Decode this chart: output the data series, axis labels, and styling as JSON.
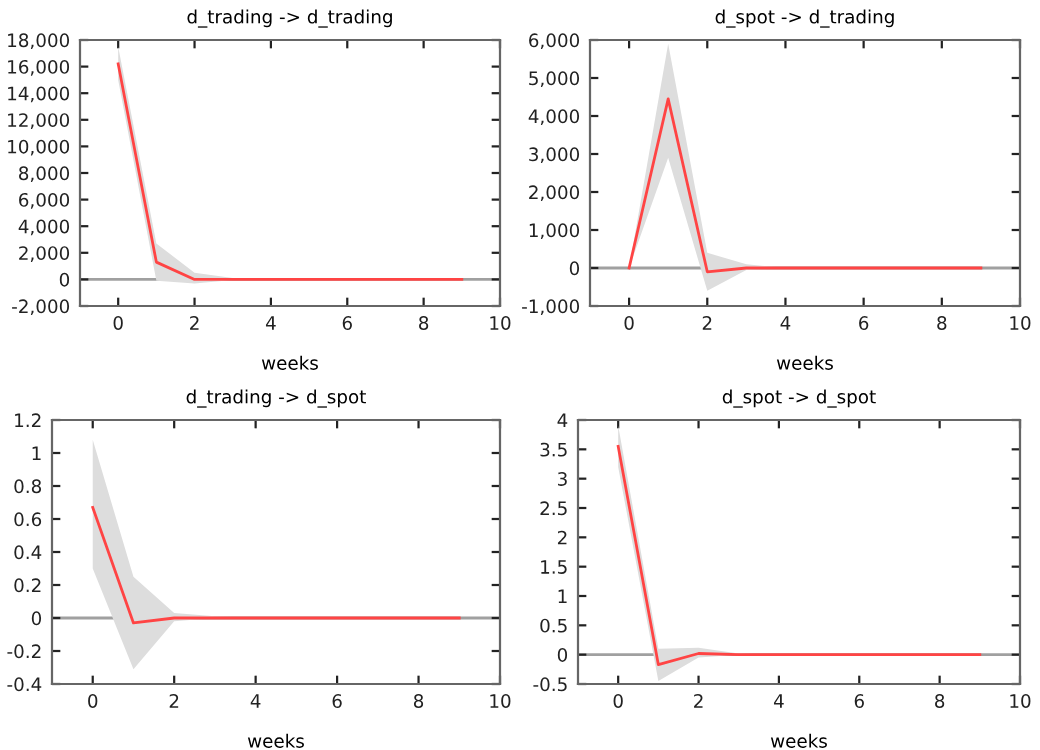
{
  "chart_data": [
    {
      "type": "line",
      "title": "d_trading -> d_trading",
      "xlabel": "weeks",
      "x": [
        0,
        1,
        2,
        3,
        4,
        5,
        6,
        7,
        8,
        9
      ],
      "series": [
        {
          "color": "#ff4444",
          "values": [
            16200,
            1300,
            0,
            0,
            0,
            0,
            0,
            0,
            0,
            0
          ],
          "lower": [
            15000,
            -100,
            -300,
            -50,
            0,
            0,
            0,
            0,
            0,
            0
          ],
          "upper": [
            17500,
            2700,
            500,
            100,
            0,
            0,
            0,
            0,
            0,
            0
          ]
        }
      ],
      "xlim": [
        -1,
        10
      ],
      "xticks": [
        0,
        2,
        4,
        6,
        8,
        10
      ],
      "ylim": [
        -2000,
        18000
      ],
      "yticks": [
        {
          "value": -2000,
          "label": "-2,000"
        },
        0,
        {
          "value": 2000,
          "label": "2,000"
        },
        {
          "value": 4000,
          "label": "4,000"
        },
        {
          "value": 6000,
          "label": "6,000"
        },
        {
          "value": 8000,
          "label": "8,000"
        },
        {
          "value": 10000,
          "label": "10,000"
        },
        {
          "value": 12000,
          "label": "12,000"
        },
        {
          "value": 14000,
          "label": "14,000"
        },
        {
          "value": 16000,
          "label": "16,000"
        },
        {
          "value": 18000,
          "label": "18,000"
        }
      ],
      "ref_lines": [
        {
          "axis": "y",
          "value": 0,
          "color": "#a0a0a0"
        }
      ],
      "marker": "none",
      "line_style": "solid"
    },
    {
      "type": "line",
      "title": "d_spot -> d_trading",
      "xlabel": "weeks",
      "x": [
        0,
        1,
        2,
        3,
        4,
        5,
        6,
        7,
        8,
        9
      ],
      "series": [
        {
          "color": "#ff4444",
          "values": [
            0,
            4450,
            -100,
            0,
            0,
            0,
            0,
            0,
            0,
            0
          ],
          "lower": [
            0,
            2900,
            -600,
            -50,
            0,
            0,
            0,
            0,
            0,
            0
          ],
          "upper": [
            0,
            5900,
            400,
            100,
            0,
            0,
            0,
            0,
            0,
            0
          ]
        }
      ],
      "xlim": [
        -1,
        10
      ],
      "xticks": [
        0,
        2,
        4,
        6,
        8,
        10
      ],
      "ylim": [
        -1000,
        6000
      ],
      "yticks": [
        {
          "value": -1000,
          "label": "-1,000"
        },
        0,
        {
          "value": 1000,
          "label": "1,000"
        },
        {
          "value": 2000,
          "label": "2,000"
        },
        {
          "value": 3000,
          "label": "3,000"
        },
        {
          "value": 4000,
          "label": "4,000"
        },
        {
          "value": 5000,
          "label": "5,000"
        },
        {
          "value": 6000,
          "label": "6,000"
        }
      ],
      "ref_lines": [
        {
          "axis": "y",
          "value": 0,
          "color": "#a0a0a0"
        }
      ],
      "marker": "none",
      "line_style": "solid"
    },
    {
      "type": "line",
      "title": "d_trading -> d_spot",
      "xlabel": "weeks",
      "x": [
        0,
        1,
        2,
        3,
        4,
        5,
        6,
        7,
        8,
        9
      ],
      "series": [
        {
          "color": "#ff4444",
          "values": [
            0.67,
            -0.03,
            0,
            0,
            0,
            0,
            0,
            0,
            0,
            0
          ],
          "lower": [
            0.3,
            -0.31,
            -0.02,
            0,
            0,
            0,
            0,
            0,
            0,
            0
          ],
          "upper": [
            1.08,
            0.25,
            0.03,
            0.01,
            0,
            0,
            0,
            0,
            0,
            0
          ]
        }
      ],
      "xlim": [
        -1,
        10
      ],
      "xticks": [
        0,
        2,
        4,
        6,
        8,
        10
      ],
      "ylim": [
        -0.4,
        1.2
      ],
      "yticks": [
        -0.4,
        -0.2,
        0,
        0.2,
        0.4,
        0.6,
        0.8,
        1,
        1.2
      ],
      "ref_lines": [
        {
          "axis": "y",
          "value": 0,
          "color": "#a0a0a0"
        }
      ],
      "marker": "none",
      "line_style": "solid"
    },
    {
      "type": "line",
      "title": "d_spot -> d_spot",
      "xlabel": "weeks",
      "x": [
        0,
        1,
        2,
        3,
        4,
        5,
        6,
        7,
        8,
        9
      ],
      "series": [
        {
          "color": "#ff4444",
          "values": [
            3.55,
            -0.17,
            0.02,
            0,
            0,
            0,
            0,
            0,
            0,
            0
          ],
          "lower": [
            3.2,
            -0.45,
            -0.05,
            0,
            0,
            0,
            0,
            0,
            0,
            0
          ],
          "upper": [
            3.9,
            0.1,
            0.12,
            0.02,
            0,
            0,
            0,
            0,
            0,
            0
          ]
        }
      ],
      "xlim": [
        -1,
        10
      ],
      "xticks": [
        0,
        2,
        4,
        6,
        8,
        10
      ],
      "ylim": [
        -0.5,
        4
      ],
      "yticks": [
        -0.5,
        0,
        0.5,
        1,
        1.5,
        2,
        2.5,
        3,
        3.5,
        4
      ],
      "ref_lines": [
        {
          "axis": "y",
          "value": 0,
          "color": "#a0a0a0"
        }
      ],
      "marker": "none",
      "line_style": "solid"
    }
  ]
}
